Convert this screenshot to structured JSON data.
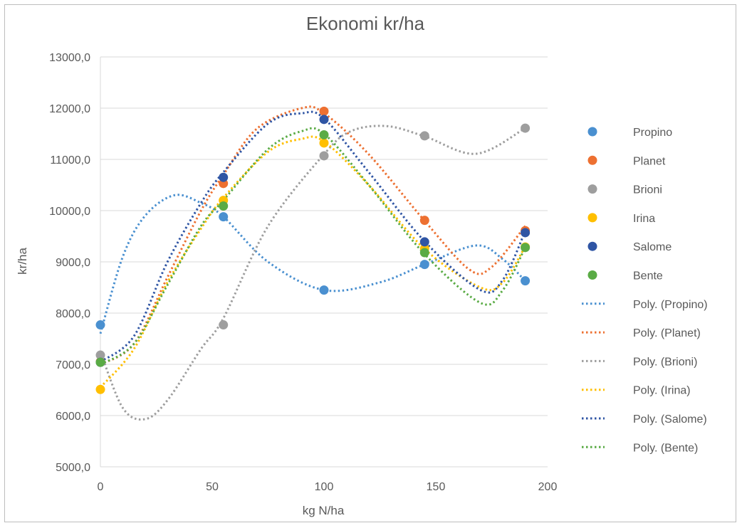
{
  "chart_data": {
    "type": "scatter",
    "title": "Ekonomi kr/ha",
    "xlabel": "kg N/ha",
    "ylabel": "kr/ha",
    "xlim": [
      0,
      200
    ],
    "ylim": [
      5000,
      13000
    ],
    "x_ticks": [
      "0",
      "50",
      "100",
      "150",
      "200"
    ],
    "y_ticks": [
      "5000,0",
      "6000,0",
      "7000,0",
      "8000,0",
      "9000,0",
      "10000,0",
      "11000,0",
      "12000,0",
      "13000,0"
    ],
    "grid": "horizontal",
    "legend_position": "right",
    "trendline": "polynomial",
    "x": [
      0,
      55,
      100,
      145,
      190
    ],
    "series": [
      {
        "name": "Propino",
        "color": "#4a90d0",
        "values": [
          7770,
          9880,
          8450,
          8950,
          8630
        ],
        "trend_name": "Poly. (Propino)",
        "trend": [
          [
            0,
            7600
          ],
          [
            10,
            9100
          ],
          [
            20,
            9900
          ],
          [
            33,
            10300
          ],
          [
            45,
            10150
          ],
          [
            55,
            9880
          ],
          [
            75,
            9000
          ],
          [
            100,
            8450
          ],
          [
            125,
            8600
          ],
          [
            145,
            8950
          ],
          [
            168,
            9320
          ],
          [
            180,
            9050
          ],
          [
            190,
            8630
          ]
        ]
      },
      {
        "name": "Planet",
        "color": "#ed7031",
        "values": [
          7050,
          10530,
          11940,
          9810,
          9610
        ],
        "trend_name": "Poly. (Planet)",
        "trend": [
          [
            0,
            7000
          ],
          [
            15,
            7400
          ],
          [
            30,
            8700
          ],
          [
            45,
            10000
          ],
          [
            55,
            10700
          ],
          [
            70,
            11600
          ],
          [
            90,
            12000
          ],
          [
            100,
            11900
          ],
          [
            120,
            11100
          ],
          [
            145,
            9800
          ],
          [
            165,
            8850
          ],
          [
            175,
            8900
          ],
          [
            190,
            9700
          ]
        ]
      },
      {
        "name": "Brioni",
        "color": "#9e9e9e",
        "values": [
          7180,
          7770,
          11070,
          11460,
          11610
        ],
        "trend_name": "Poly. (Brioni)",
        "trend": [
          [
            0,
            7250
          ],
          [
            10,
            6150
          ],
          [
            20,
            5930
          ],
          [
            30,
            6300
          ],
          [
            45,
            7300
          ],
          [
            55,
            7900
          ],
          [
            75,
            9700
          ],
          [
            100,
            11100
          ],
          [
            112,
            11550
          ],
          [
            128,
            11650
          ],
          [
            145,
            11450
          ],
          [
            168,
            11110
          ],
          [
            190,
            11610
          ]
        ]
      },
      {
        "name": "Irina",
        "color": "#ffbf00",
        "values": [
          6510,
          10200,
          11320,
          9260,
          9290
        ],
        "trend_name": "Poly. (Irina)",
        "trend": [
          [
            0,
            6550
          ],
          [
            15,
            7300
          ],
          [
            30,
            8600
          ],
          [
            45,
            9650
          ],
          [
            55,
            10250
          ],
          [
            75,
            11150
          ],
          [
            90,
            11400
          ],
          [
            100,
            11350
          ],
          [
            120,
            10500
          ],
          [
            145,
            9250
          ],
          [
            170,
            8500
          ],
          [
            180,
            8600
          ],
          [
            190,
            9300
          ]
        ]
      },
      {
        "name": "Salome",
        "color": "#2f55a4",
        "values": [
          7040,
          10650,
          11780,
          9390,
          9570
        ],
        "trend_name": "Poly. (Salome)",
        "trend": [
          [
            0,
            7050
          ],
          [
            15,
            7550
          ],
          [
            30,
            9000
          ],
          [
            45,
            10150
          ],
          [
            55,
            10750
          ],
          [
            75,
            11700
          ],
          [
            90,
            11900
          ],
          [
            100,
            11800
          ],
          [
            120,
            10750
          ],
          [
            145,
            9400
          ],
          [
            170,
            8450
          ],
          [
            180,
            8650
          ],
          [
            190,
            9600
          ]
        ]
      },
      {
        "name": "Bente",
        "color": "#5aab45",
        "values": [
          7040,
          10090,
          11480,
          9180,
          9280
        ],
        "trend_name": "Poly. (Bente)",
        "trend": [
          [
            0,
            7000
          ],
          [
            15,
            7400
          ],
          [
            30,
            8550
          ],
          [
            45,
            9700
          ],
          [
            55,
            10200
          ],
          [
            75,
            11200
          ],
          [
            90,
            11550
          ],
          [
            100,
            11500
          ],
          [
            120,
            10500
          ],
          [
            145,
            9150
          ],
          [
            170,
            8200
          ],
          [
            180,
            8450
          ],
          [
            190,
            9280
          ]
        ]
      }
    ]
  }
}
